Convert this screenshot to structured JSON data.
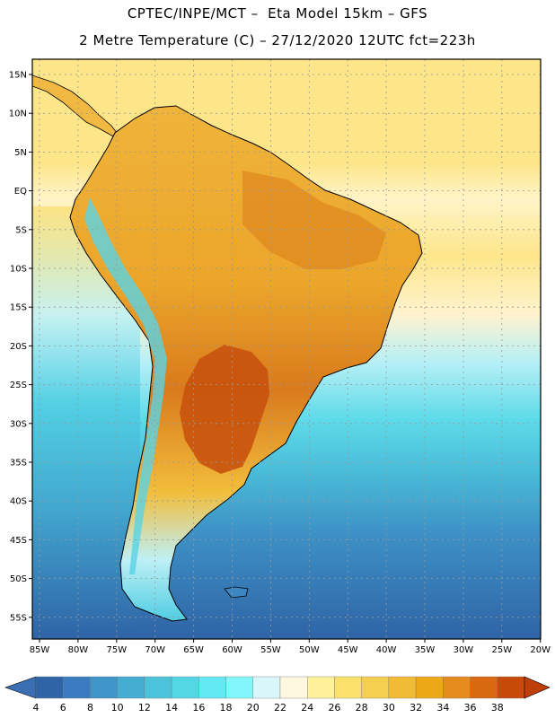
{
  "title_line1": "CPTEC/INPE/MCT –  Eta Model 15km – GFS",
  "title_line2": "2 Metre Temperature (C) – 27/12/2020 12UTC fct=223h",
  "lat_labels": [
    "15N",
    "10N",
    "5N",
    "EQ",
    "5S",
    "10S",
    "15S",
    "20S",
    "25S",
    "30S",
    "35S",
    "40S",
    "45S",
    "50S",
    "55S"
  ],
  "lon_labels": [
    "85W",
    "80W",
    "75W",
    "70W",
    "65W",
    "60W",
    "55W",
    "50W",
    "45W",
    "40W",
    "35W",
    "30W",
    "25W",
    "20W"
  ],
  "colorbar": {
    "ticks": [
      "4",
      "6",
      "8",
      "10",
      "12",
      "14",
      "16",
      "18",
      "20",
      "22",
      "24",
      "26",
      "28",
      "30",
      "32",
      "34",
      "36",
      "38"
    ],
    "colors": [
      "#2f64a6",
      "#3a7cbf",
      "#3f95c8",
      "#45acd2",
      "#4cc3da",
      "#53d7e4",
      "#62e9f2",
      "#82f7fb",
      "#d9f7fb",
      "#fff8e0",
      "#fff29a",
      "#fbe06a",
      "#f7cf50",
      "#f1bb36",
      "#eda818",
      "#e68c1e",
      "#d96810",
      "#c84a0a"
    ],
    "low_color": "#3b6fb3",
    "high_color": "#c03e08"
  }
}
